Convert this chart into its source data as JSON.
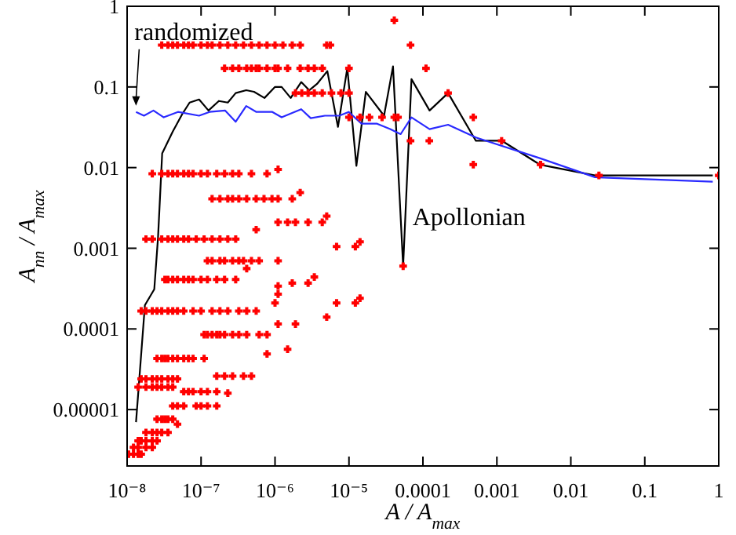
{
  "chart_data": {
    "type": "scatter",
    "xlabel": "A / A$_{max}$",
    "ylabel": "A$_{nn}$ / A$_{max}$",
    "log": "xy",
    "marker": "cross",
    "xlim": [
      1e-08,
      1
    ],
    "ylim": [
      2e-06,
      1
    ],
    "xticks": [
      {
        "value": 1e-08,
        "label": "10⁻⁸"
      },
      {
        "value": 1e-07,
        "label": "10⁻⁷"
      },
      {
        "value": 1e-06,
        "label": "10⁻⁶"
      },
      {
        "value": 1e-05,
        "label": "10⁻⁵"
      },
      {
        "value": 0.0001,
        "label": "0.0001"
      },
      {
        "value": 0.001,
        "label": "0.001"
      },
      {
        "value": 0.01,
        "label": "0.01"
      },
      {
        "value": 0.1,
        "label": "0.1"
      },
      {
        "value": 1,
        "label": "1"
      }
    ],
    "yticks": [
      {
        "value": 1e-05,
        "label": "0.00001"
      },
      {
        "value": 0.0001,
        "label": "0.0001"
      },
      {
        "value": 0.001,
        "label": "0.001"
      },
      {
        "value": 0.01,
        "label": "0.01"
      },
      {
        "value": 0.1,
        "label": "0.1"
      },
      {
        "value": 1,
        "label": "1"
      }
    ],
    "annotations": [
      {
        "text": "randomized",
        "x": 1.32e-08,
        "y": 0.049
      },
      {
        "text": "Apollonian",
        "x": 5.4e-05,
        "y": 0.0006
      }
    ],
    "series": [
      {
        "type": "line",
        "marker": "none",
        "color": "#000000",
        "x": [
          1.32e-08,
          1.74e-08,
          2.33e-08,
          2.62e-08,
          2.98e-08,
          4.14e-08,
          5.56e-08,
          7e-08,
          9.4e-08,
          1.26e-07,
          1.74e-07,
          2.3e-07,
          2.94e-07,
          4.08e-07,
          5.2e-07,
          7.2e-07,
          1e-06,
          1.23e-06,
          1.63e-06,
          2.26e-06,
          2.9e-06,
          3.7e-06,
          5.1e-06,
          7.1e-06,
          9.5e-06,
          1.26e-05,
          1.69e-05,
          2.98e-05,
          3.94e-05,
          5.4e-05,
          7e-05,
          0.000123,
          0.000219,
          0.00052,
          0.00117,
          0.0038,
          0.0212,
          0.83
        ],
        "values": [
          7e-06,
          0.000197,
          0.00031,
          0.00137,
          0.015,
          0.028,
          0.046,
          0.064,
          0.07,
          0.051,
          0.067,
          0.064,
          0.084,
          0.091,
          0.087,
          0.073,
          0.1,
          0.1,
          0.073,
          0.115,
          0.091,
          0.109,
          0.157,
          0.032,
          0.172,
          0.0105,
          0.087,
          0.044,
          0.18,
          0.0006,
          0.125,
          0.051,
          0.084,
          0.0215,
          0.0215,
          0.0109,
          0.008,
          0.008
        ]
      },
      {
        "type": "line",
        "marker": "none",
        "color": "#2a2aff",
        "x": [
          1.32e-08,
          1.69e-08,
          2.27e-08,
          3.13e-08,
          4.87e-08,
          9.4e-08,
          1.3e-07,
          2.12e-07,
          2.94e-07,
          4.08e-07,
          5.6e-07,
          9.2e-07,
          1.23e-06,
          2.26e-06,
          3.04e-06,
          4.72e-06,
          7.4e-06,
          9.9e-06,
          1.48e-05,
          2.4e-05,
          3.6e-05,
          5e-05,
          7e-05,
          0.000123,
          0.000219,
          0.00052,
          0.0038,
          0.0212,
          0.83
        ],
        "values": [
          0.049,
          0.044,
          0.051,
          0.042,
          0.049,
          0.044,
          0.049,
          0.051,
          0.037,
          0.058,
          0.049,
          0.049,
          0.042,
          0.053,
          0.041,
          0.044,
          0.044,
          0.049,
          0.035,
          0.035,
          0.03,
          0.026,
          0.042,
          0.03,
          0.034,
          0.0236,
          0.0131,
          0.0076,
          0.0067
        ]
      },
      {
        "color": "#ff0000",
        "x": [
          2.94e-08,
          3.57e-08,
          4.14e-08,
          4.8e-08,
          5.83e-08,
          6.76e-08,
          7.8e-08,
          1e-07,
          1.22e-07,
          1.41e-07,
          1.8e-07,
          2.3e-07,
          2.94e-07,
          3.75e-07,
          4.8e-07,
          6.1e-07,
          7.8e-07,
          1e-06,
          1.28e-06,
          1.71e-06,
          2.19e-06,
          5e-06,
          5.6e-06,
          6.8e-05,
          4.1e-05
        ],
        "values": [
          0.33,
          0.33,
          0.33,
          0.33,
          0.33,
          0.33,
          0.33,
          0.33,
          0.33,
          0.33,
          0.33,
          0.33,
          0.33,
          0.33,
          0.33,
          0.33,
          0.33,
          0.33,
          0.33,
          0.33,
          0.33,
          0.33,
          0.33,
          0.33,
          0.67
        ]
      },
      {
        "color": "#ff0000",
        "x": [
          2.08e-07,
          2.67e-07,
          3.24e-07,
          4.14e-07,
          4.8e-07,
          5.56e-07,
          6.1e-07,
          7.8e-07,
          1e-06,
          1.1e-06,
          1.48e-06,
          2.19e-06,
          2.8e-06,
          3.4e-06,
          4.35e-06,
          1e-05,
          0.00011
        ],
        "values": [
          0.17,
          0.17,
          0.17,
          0.17,
          0.17,
          0.17,
          0.17,
          0.17,
          0.17,
          0.17,
          0.17,
          0.17,
          0.17,
          0.17,
          0.17,
          0.17,
          0.17
        ]
      },
      {
        "color": "#ff0000",
        "x": [
          1.89e-06,
          2.3e-06,
          2.8e-06,
          3.4e-06,
          4.35e-06,
          5.8e-06,
          7.8e-06,
          1e-05,
          0.000219
        ],
        "values": [
          0.084,
          0.084,
          0.084,
          0.084,
          0.084,
          0.084,
          0.084,
          0.084,
          0.084
        ]
      },
      {
        "color": "#ff0000",
        "x": [
          1e-05,
          1.41e-05,
          1.89e-05,
          2.8e-05,
          4.1e-05,
          4.6e-05,
          0.00048,
          6.8e-05,
          0.000122,
          0.00116,
          0.00048,
          0.0039,
          0.024,
          1
        ],
        "values": [
          0.042,
          0.042,
          0.042,
          0.042,
          0.042,
          0.042,
          0.042,
          0.0215,
          0.0215,
          0.0215,
          0.0109,
          0.0109,
          0.008,
          0.008
        ]
      },
      {
        "color": "#ff0000",
        "x": [
          2.19e-08,
          2.94e-08,
          3.57e-08,
          4.14e-08,
          4.8e-08,
          5.83e-08,
          6.76e-08,
          7.8e-08,
          1e-07,
          1.22e-07,
          1.63e-07,
          2.08e-07,
          2.67e-07,
          3.24e-07,
          4.8e-07,
          7.8e-07,
          1.1e-06
        ],
        "values": [
          0.0084,
          0.0084,
          0.0084,
          0.0084,
          0.0084,
          0.0084,
          0.0084,
          0.0084,
          0.0084,
          0.0084,
          0.0084,
          0.0084,
          0.0084,
          0.0084,
          0.0084,
          0.0084,
          0.0095
        ]
      },
      {
        "color": "#ff0000",
        "x": [
          1.41e-07,
          1.8e-07,
          2.3e-07,
          2.67e-07,
          3.24e-07,
          4.14e-07,
          5.56e-07,
          7.1e-07,
          9.1e-07,
          1.1e-06,
          1.71e-06,
          2.19e-06
        ],
        "values": [
          0.0041,
          0.0041,
          0.0041,
          0.0041,
          0.0041,
          0.0041,
          0.0041,
          0.0041,
          0.0041,
          0.0041,
          0.0041,
          0.0049
        ]
      },
      {
        "color": "#ff0000",
        "x": [
          1.1e-06,
          1.48e-06,
          1.89e-06,
          2.8e-06,
          4.35e-06,
          5e-06
        ],
        "values": [
          0.0021,
          0.0021,
          0.0021,
          0.0021,
          0.0021,
          0.0025
        ]
      },
      {
        "color": "#ff0000",
        "x": [
          1.8e-08,
          2.19e-08,
          2.94e-08,
          3.57e-08,
          4.14e-08,
          4.8e-08,
          5.83e-08,
          6.76e-08,
          8.6e-08,
          1.1e-07,
          1.41e-07,
          1.8e-07,
          2.3e-07,
          2.94e-07,
          5.56e-07,
          6.8e-06,
          1.22e-05,
          1.41e-05
        ],
        "values": [
          0.0013,
          0.0013,
          0.0013,
          0.0013,
          0.0013,
          0.0013,
          0.0013,
          0.0013,
          0.0013,
          0.0013,
          0.0013,
          0.0013,
          0.0013,
          0.0013,
          0.0017,
          0.00105,
          0.00105,
          0.0012
        ]
      },
      {
        "color": "#ff0000",
        "x": [
          1.22e-07,
          1.41e-07,
          1.8e-07,
          2.08e-07,
          2.67e-07,
          3.24e-07,
          3.75e-07,
          4.8e-07,
          6.1e-07,
          1.1e-06,
          4.14e-07,
          5.4e-05
        ],
        "values": [
          0.0007,
          0.0007,
          0.0007,
          0.0007,
          0.0007,
          0.0007,
          0.0007,
          0.0007,
          0.0007,
          0.0007,
          0.00056,
          0.0006
        ]
      },
      {
        "color": "#ff0000",
        "x": [
          3.24e-08,
          3.57e-08,
          4.14e-08,
          4.8e-08,
          5.83e-08,
          6.76e-08,
          7.8e-08,
          1e-07,
          1.22e-07,
          1.63e-07,
          2.08e-07,
          2.94e-07,
          1.1e-06,
          1.71e-06,
          2.8e-06,
          3.4e-06,
          1.1e-06
        ],
        "values": [
          0.00041,
          0.00041,
          0.00041,
          0.00041,
          0.00041,
          0.00041,
          0.00041,
          0.00041,
          0.00041,
          0.00041,
          0.00041,
          0.00041,
          0.00034,
          0.00037,
          0.00037,
          0.00044,
          0.00027
        ]
      },
      {
        "color": "#ff0000",
        "x": [
          1.55e-08,
          1.8e-08,
          2.19e-08,
          2.54e-08,
          2.94e-08,
          3.57e-08,
          4.14e-08,
          4.8e-08,
          5.83e-08,
          7.8e-08,
          1e-07,
          1.41e-07,
          1.8e-07,
          2.3e-07,
          3.24e-07,
          4.14e-07,
          5.56e-07,
          1e-06,
          1.89e-06,
          5e-06,
          6.8e-06,
          1.22e-05,
          1.41e-05
        ],
        "values": [
          0.000167,
          0.000167,
          0.000167,
          0.000167,
          0.000167,
          0.000167,
          0.000167,
          0.000167,
          0.000167,
          0.000167,
          0.000167,
          0.000167,
          0.000167,
          0.000167,
          0.000167,
          0.000167,
          0.000167,
          0.00021,
          0.000115,
          0.00014,
          0.00021,
          0.00021,
          0.00024
        ]
      },
      {
        "color": "#ff0000",
        "x": [
          1.1e-07,
          1.22e-07,
          1.41e-07,
          1.63e-07,
          1.8e-07,
          2.08e-07,
          2.67e-07,
          3.24e-07,
          4.14e-07,
          6.1e-07,
          7.8e-07,
          1.1e-06
        ],
        "values": [
          8.5e-05,
          8.5e-05,
          8.5e-05,
          8.5e-05,
          8.5e-05,
          8.5e-05,
          8.5e-05,
          8.5e-05,
          8.5e-05,
          8.5e-05,
          8.5e-05,
          0.000115
        ]
      },
      {
        "color": "#ff0000",
        "x": [
          2.54e-08,
          2.94e-08,
          3.24e-08,
          3.57e-08,
          4.14e-08,
          4.8e-08,
          5.83e-08,
          6.76e-08,
          7.8e-08,
          1.1e-07,
          7.8e-07,
          1.48e-06
        ],
        "values": [
          4.3e-05,
          4.3e-05,
          4.3e-05,
          4.3e-05,
          4.3e-05,
          4.3e-05,
          4.3e-05,
          4.3e-05,
          4.3e-05,
          4.3e-05,
          4.9e-05,
          5.6e-05
        ]
      },
      {
        "color": "#ff0000",
        "x": [
          1.55e-08,
          1.8e-08,
          2.19e-08,
          2.54e-08,
          2.94e-08,
          3.57e-08,
          4.14e-08,
          4.8e-08,
          1.63e-07,
          2.08e-07,
          2.67e-07,
          3.75e-07,
          4.8e-07
        ],
        "values": [
          2.4e-05,
          2.4e-05,
          2.4e-05,
          2.4e-05,
          2.4e-05,
          2.4e-05,
          2.4e-05,
          2.4e-05,
          2.6e-05,
          2.6e-05,
          2.6e-05,
          2.6e-05,
          2.6e-05
        ]
      },
      {
        "color": "#ff0000",
        "x": [
          1.41e-08,
          1.8e-08,
          2.19e-08,
          2.54e-08,
          2.94e-08,
          3.57e-08,
          4.14e-08,
          5.83e-08,
          6.76e-08,
          7.8e-08,
          1e-07,
          1.22e-07,
          1.63e-07,
          2.3e-07
        ],
        "values": [
          1.9e-05,
          1.9e-05,
          1.9e-05,
          1.9e-05,
          1.9e-05,
          1.9e-05,
          1.9e-05,
          1.67e-05,
          1.67e-05,
          1.67e-05,
          1.67e-05,
          1.67e-05,
          1.67e-05,
          1.6e-05
        ]
      },
      {
        "color": "#ff0000",
        "x": [
          4.14e-08,
          4.8e-08,
          5.83e-08,
          8.6e-08,
          1e-07,
          1.22e-07,
          1.63e-07,
          2.54e-08,
          2.94e-08,
          3.24e-08,
          3.57e-08,
          4.14e-08,
          4.8e-08
        ],
        "values": [
          1.11e-05,
          1.11e-05,
          1.11e-05,
          1.11e-05,
          1.11e-05,
          1.11e-05,
          1.11e-05,
          7.6e-06,
          7.6e-06,
          7.6e-06,
          7.6e-06,
          7.6e-06,
          6.6e-06
        ]
      },
      {
        "color": "#ff0000",
        "x": [
          1.8e-08,
          2.19e-08,
          2.54e-08,
          2.94e-08,
          3.57e-08,
          1.41e-08,
          1.55e-08,
          1.8e-08,
          2.19e-08,
          2.54e-08,
          1.22e-08,
          1.41e-08,
          1.8e-08,
          2.19e-08,
          1.05e-08,
          1.22e-08,
          1.41e-08,
          1.55e-08
        ],
        "values": [
          5.2e-06,
          5.2e-06,
          5.2e-06,
          5.2e-06,
          5.2e-06,
          4.1e-06,
          4.1e-06,
          4.1e-06,
          4.1e-06,
          4.1e-06,
          3.4e-06,
          3.4e-06,
          3.4e-06,
          3.4e-06,
          2.8e-06,
          2.8e-06,
          2.8e-06,
          2.8e-06
        ]
      }
    ]
  }
}
